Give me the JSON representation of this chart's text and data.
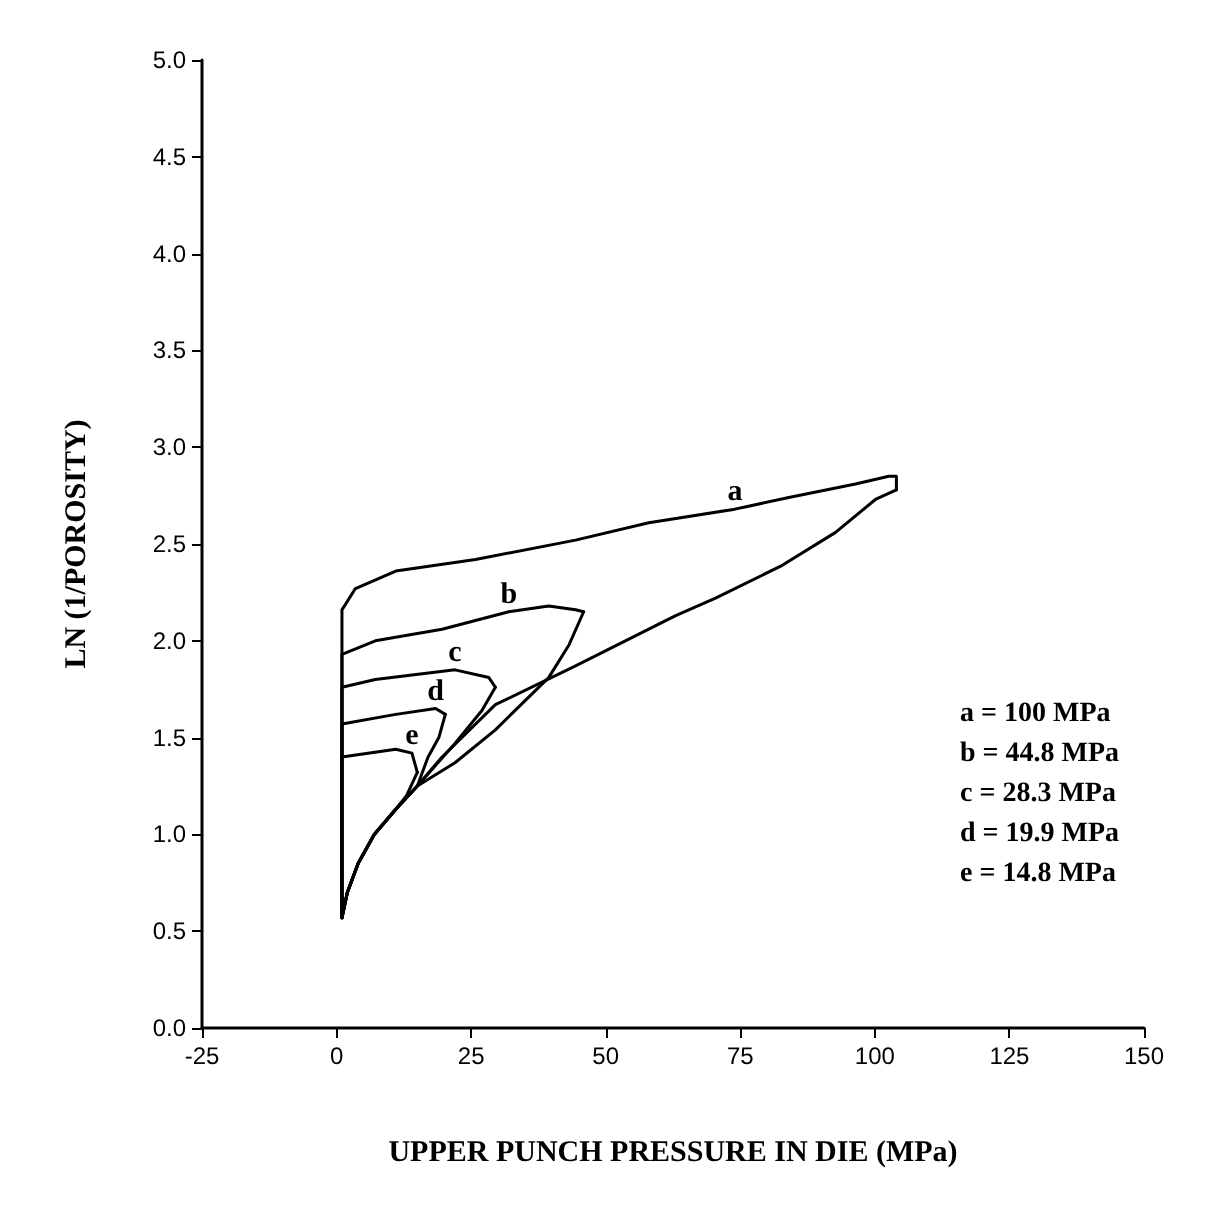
{
  "chart_data": {
    "type": "line",
    "xlabel": "UPPER PUNCH PRESSURE IN DIE (MPa)",
    "ylabel": "LN (1/POROSITY)",
    "xlim": [
      -25,
      150
    ],
    "xticks": [
      -25,
      0,
      25,
      50,
      75,
      100,
      125,
      150
    ],
    "ylim": [
      0,
      5
    ],
    "yticks": [
      {
        "value": 0,
        "label": "0.0"
      },
      {
        "value": 0.5,
        "label": "0.5"
      },
      {
        "value": 1,
        "label": "1.0"
      },
      {
        "value": 1.5,
        "label": "1.5"
      },
      {
        "value": 2,
        "label": "2.0"
      },
      {
        "value": 2.5,
        "label": "2.5"
      },
      {
        "value": 3,
        "label": "3.0"
      },
      {
        "value": 3.5,
        "label": "3.5"
      },
      {
        "value": 4,
        "label": "4.0"
      },
      {
        "value": 4.5,
        "label": "4.5"
      },
      {
        "value": 5,
        "label": "5.0"
      }
    ],
    "grid": false,
    "marker": "none",
    "line_style": "solid",
    "series": [
      {
        "color": "#000000",
        "x": [
          1,
          2,
          4,
          7,
          11,
          15,
          19.6,
          29.5,
          44.4,
          58,
          63,
          70.4,
          82.8,
          92.7,
          100.1,
          104
        ],
        "values": [
          0.57,
          0.7,
          0.85,
          1.0,
          1.13,
          1.25,
          1.4,
          1.67,
          1.87,
          2.06,
          2.13,
          2.22,
          2.39,
          2.56,
          2.73,
          2.78
        ]
      },
      {
        "name": "a",
        "color": "#000000",
        "x": [
          1,
          1,
          3.5,
          11,
          25.8,
          44.4,
          58,
          74,
          84,
          96.4,
          102.6,
          104,
          104
        ],
        "values": [
          0.57,
          2.16,
          2.27,
          2.36,
          2.42,
          2.52,
          2.61,
          2.68,
          2.74,
          2.81,
          2.85,
          2.85,
          2.78
        ]
      },
      {
        "color": "#000000",
        "x": [
          1,
          2,
          4,
          7,
          11,
          15,
          22,
          29.5,
          39.4,
          43.2,
          45.9
        ],
        "values": [
          0.57,
          0.7,
          0.85,
          1.0,
          1.13,
          1.25,
          1.37,
          1.54,
          1.81,
          1.98,
          2.15
        ]
      },
      {
        "name": "b",
        "color": "#000000",
        "x": [
          1,
          1,
          7.2,
          19.6,
          32,
          39.4,
          44.4,
          45.9
        ],
        "values": [
          0.57,
          1.93,
          2.0,
          2.06,
          2.15,
          2.18,
          2.16,
          2.15
        ]
      },
      {
        "color": "#000000",
        "x": [
          1,
          2,
          4,
          7,
          11,
          15,
          22,
          27,
          29.5
        ],
        "values": [
          0.57,
          0.7,
          0.85,
          1.0,
          1.13,
          1.25,
          1.47,
          1.64,
          1.76
        ]
      },
      {
        "name": "c",
        "color": "#000000",
        "x": [
          1,
          1,
          7.2,
          22,
          28.3,
          29.5
        ],
        "values": [
          0.57,
          1.76,
          1.8,
          1.85,
          1.81,
          1.76
        ]
      },
      {
        "color": "#000000",
        "x": [
          1,
          2,
          4,
          7,
          11,
          15,
          17,
          19,
          20.2
        ],
        "values": [
          0.57,
          0.7,
          0.85,
          1.0,
          1.13,
          1.25,
          1.4,
          1.5,
          1.62
        ]
      },
      {
        "name": "d",
        "color": "#000000",
        "x": [
          1,
          1,
          11,
          18.4,
          20.2
        ],
        "values": [
          0.57,
          1.57,
          1.62,
          1.65,
          1.62
        ]
      },
      {
        "color": "#000000",
        "x": [
          1,
          2,
          4,
          7,
          11,
          13,
          15
        ],
        "values": [
          0.57,
          0.7,
          0.85,
          1.0,
          1.13,
          1.2,
          1.32
        ]
      },
      {
        "name": "e",
        "color": "#000000",
        "x": [
          1,
          1,
          11,
          14,
          15
        ],
        "values": [
          0.57,
          1.4,
          1.44,
          1.42,
          1.32
        ]
      }
    ],
    "annotations": [
      "a = 100 MPa",
      "b = 44.8 MPa",
      "c = 28.3 MPa",
      "d = 19.9 MPa",
      "e = 14.8 MPa"
    ]
  }
}
